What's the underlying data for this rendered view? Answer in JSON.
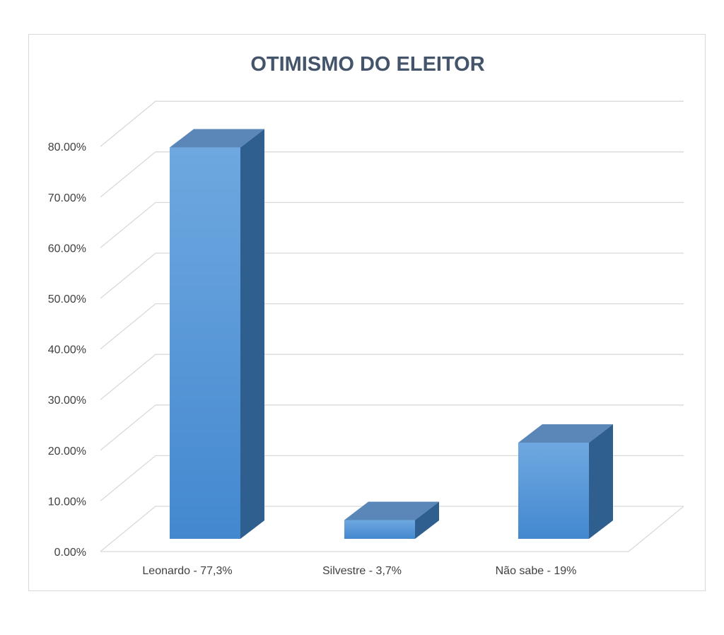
{
  "chart_data": {
    "type": "bar",
    "title": "OTIMISMO DO ELEITOR",
    "xlabel": "",
    "ylabel": "",
    "categories": [
      "Leonardo - 77,3%",
      "Silvestre - 3,7%",
      "Não sabe - 19%"
    ],
    "values": [
      0.773,
      0.037,
      0.19
    ],
    "ylim": [
      0,
      0.8
    ],
    "y_ticks": [
      "0.00%",
      "10.00%",
      "20.00%",
      "30.00%",
      "40.00%",
      "50.00%",
      "60.00%",
      "70.00%",
      "80.00%"
    ],
    "grid": true,
    "legend": "none",
    "style": "3d-column",
    "colors": {
      "bar_front_top": "#6fa8e0",
      "bar_front_bottom": "#4388cf",
      "bar_side": "#2f5f8f",
      "bar_top": "#5a86b8",
      "grid": "#d9d9d9",
      "title": "#44546a"
    }
  }
}
